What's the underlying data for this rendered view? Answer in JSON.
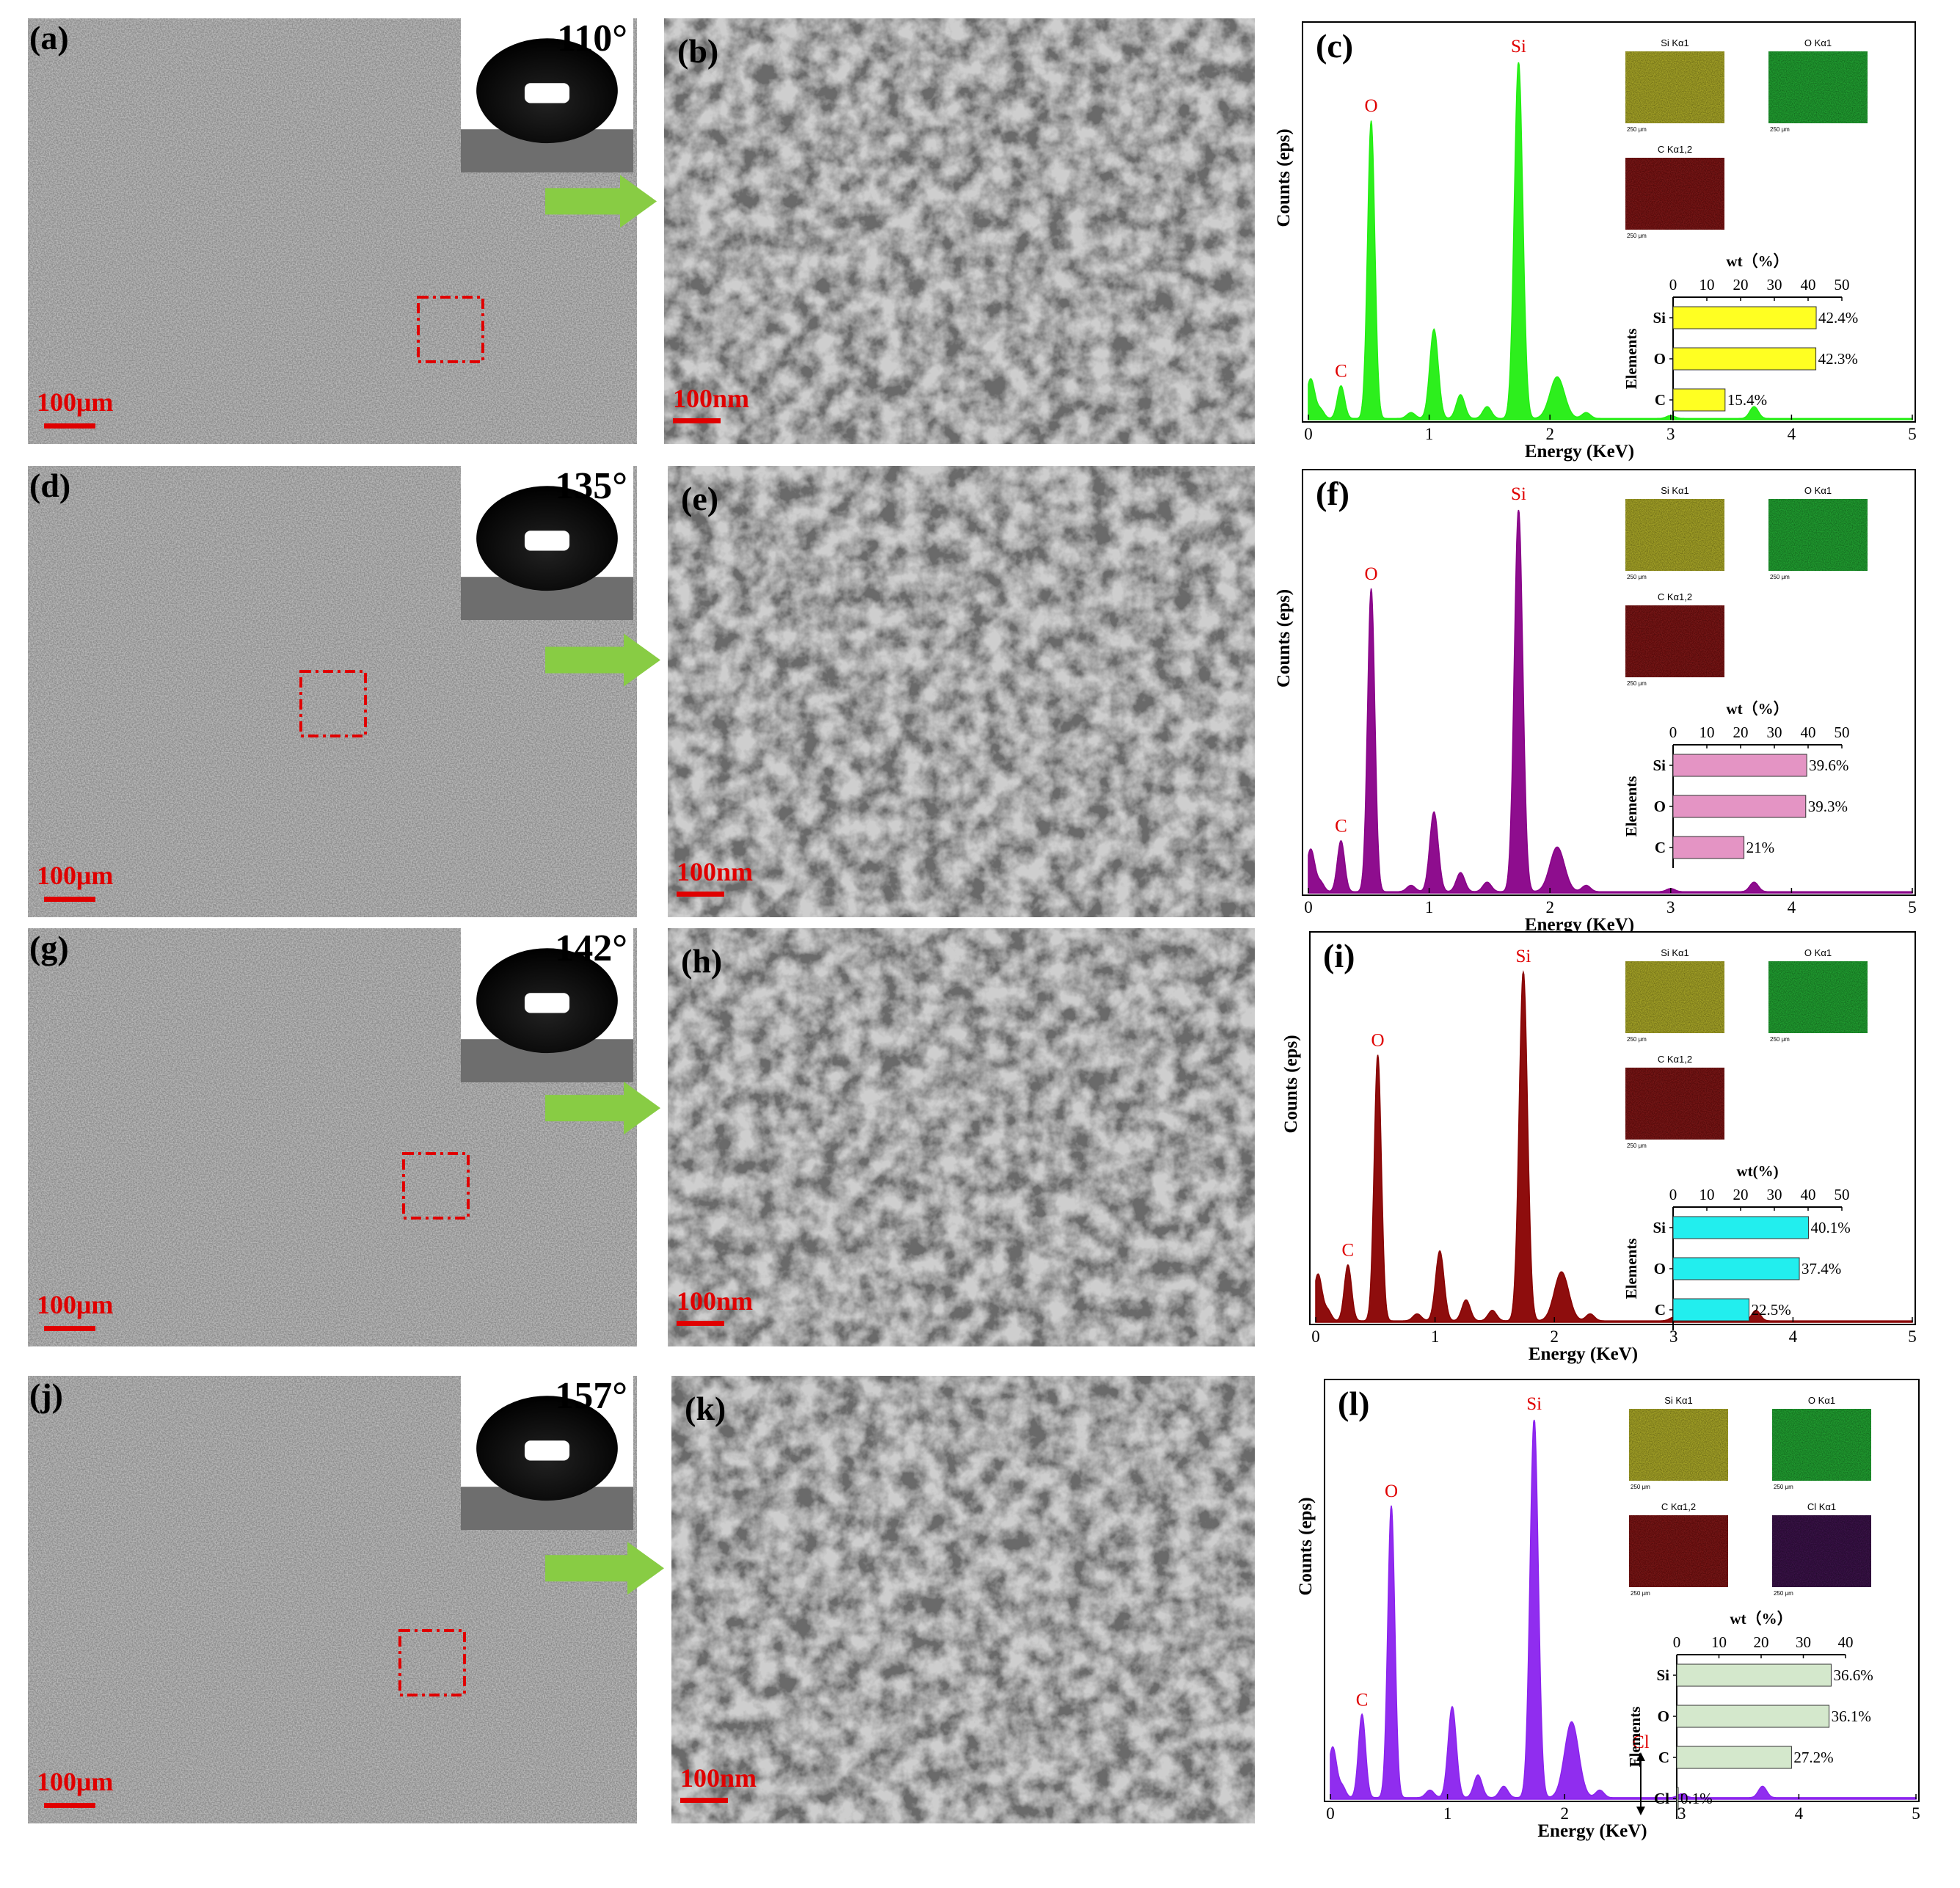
{
  "figure": {
    "rows": [
      {
        "sem_low_label": "(a)",
        "contact_angle": "110°",
        "scale_low": "100μm",
        "sem_high_label": "(b)",
        "scale_high": "100nm",
        "eds_label": "(c)",
        "color": "#22ee11",
        "chart_data": {
          "type": "area",
          "xlabel": "Energy (KeV)",
          "ylabel": "Counts (eps)",
          "xlim": [
            0,
            5
          ],
          "xticks": [
            "0",
            "1",
            "2",
            "3",
            "4",
            "5"
          ],
          "peaks": [
            {
              "label": "C",
              "energy": 0.27
            },
            {
              "label": "O",
              "energy": 0.52
            },
            {
              "label": "Si",
              "energy": 1.74
            }
          ],
          "spectrum": [
            [
              0.0,
              0.06
            ],
            [
              0.03,
              0.09
            ],
            [
              0.1,
              0.03
            ],
            [
              0.27,
              0.11
            ],
            [
              0.52,
              1.0
            ],
            [
              0.85,
              0.02
            ],
            [
              1.04,
              0.3
            ],
            [
              1.26,
              0.08
            ],
            [
              1.48,
              0.04
            ],
            [
              1.74,
              1.2
            ],
            [
              2.06,
              0.14
            ],
            [
              2.3,
              0.02
            ],
            [
              3.0,
              0.01
            ],
            [
              3.69,
              0.04
            ],
            [
              5.0,
              0.0
            ]
          ],
          "inset_bar": {
            "title": "wt（%）",
            "ylabel": "Elements",
            "xlim": [
              0,
              50
            ],
            "xticks": [
              "0",
              "10",
              "20",
              "30",
              "40",
              "50"
            ],
            "categories": [
              "Si",
              "O",
              "C"
            ],
            "values": [
              42.4,
              42.3,
              15.4
            ],
            "value_labels": [
              "42.4%",
              "42.3%",
              "15.4%"
            ],
            "bar_color": "#ffff22"
          },
          "maps": [
            {
              "label": "Si Kα1",
              "scale": "250 μm",
              "color": "#a7a528"
            },
            {
              "label": "O Kα1",
              "scale": "250 μm",
              "color": "#22a032"
            },
            {
              "label": "C Kα1,2",
              "scale": "250 μm",
              "color": "#7a1616"
            }
          ]
        }
      },
      {
        "sem_low_label": "(d)",
        "contact_angle": "135°",
        "scale_low": "100μm",
        "sem_high_label": "(e)",
        "scale_high": "100nm",
        "eds_label": "(f)",
        "color": "#880088",
        "chart_data": {
          "type": "area",
          "xlabel": "Energy (KeV)",
          "ylabel": "Counts (eps)",
          "xlim": [
            0,
            5
          ],
          "xticks": [
            "0",
            "1",
            "2",
            "3",
            "4",
            "5"
          ],
          "peaks": [
            {
              "label": "C",
              "energy": 0.27
            },
            {
              "label": "O",
              "energy": 0.52
            },
            {
              "label": "Si",
              "energy": 1.74
            }
          ],
          "spectrum": [
            [
              0.0,
              0.06
            ],
            [
              0.03,
              0.09
            ],
            [
              0.1,
              0.03
            ],
            [
              0.27,
              0.16
            ],
            [
              0.52,
              0.95
            ],
            [
              0.85,
              0.02
            ],
            [
              1.04,
              0.25
            ],
            [
              1.26,
              0.06
            ],
            [
              1.48,
              0.03
            ],
            [
              1.74,
              1.2
            ],
            [
              2.06,
              0.14
            ],
            [
              2.3,
              0.02
            ],
            [
              3.0,
              0.01
            ],
            [
              3.69,
              0.03
            ],
            [
              5.0,
              0.0
            ]
          ],
          "inset_bar": {
            "title": "wt（%）",
            "ylabel": "Elements",
            "xlim": [
              0,
              50
            ],
            "xticks": [
              "0",
              "10",
              "20",
              "30",
              "40",
              "50"
            ],
            "categories": [
              "Si",
              "O",
              "C"
            ],
            "values": [
              39.6,
              39.3,
              21
            ],
            "value_labels": [
              "39.6%",
              "39.3%",
              "21%"
            ],
            "bar_color": "#e494c4"
          },
          "maps": [
            {
              "label": "Si Kα1",
              "scale": "250 μm",
              "color": "#a7a528"
            },
            {
              "label": "O Kα1",
              "scale": "250 μm",
              "color": "#22a032"
            },
            {
              "label": "C Kα1,2",
              "scale": "250 μm",
              "color": "#7a1616"
            }
          ]
        }
      },
      {
        "sem_low_label": "(g)",
        "contact_angle": "142°",
        "scale_low": "100μm",
        "sem_high_label": "(h)",
        "scale_high": "100nm",
        "eds_label": "(i)",
        "color": "#880000",
        "chart_data": {
          "type": "area",
          "xlabel": "Energy (KeV)",
          "ylabel": "Counts (eps)",
          "xlim": [
            0,
            5
          ],
          "xticks": [
            "0",
            "1",
            "2",
            "3",
            "4",
            "5"
          ],
          "peaks": [
            {
              "label": "C",
              "energy": 0.27
            },
            {
              "label": "O",
              "energy": 0.52
            },
            {
              "label": "Si",
              "energy": 1.74
            }
          ],
          "spectrum": [
            [
              0.0,
              0.06
            ],
            [
              0.03,
              0.09
            ],
            [
              0.1,
              0.03
            ],
            [
              0.27,
              0.16
            ],
            [
              0.52,
              0.76
            ],
            [
              0.85,
              0.02
            ],
            [
              1.04,
              0.2
            ],
            [
              1.26,
              0.06
            ],
            [
              1.48,
              0.03
            ],
            [
              1.74,
              1.0
            ],
            [
              2.06,
              0.14
            ],
            [
              2.3,
              0.02
            ],
            [
              3.0,
              0.01
            ],
            [
              3.69,
              0.03
            ],
            [
              5.0,
              0.0
            ]
          ],
          "inset_bar": {
            "title": "wt(%)",
            "ylabel": "Elements",
            "xlim": [
              0,
              50
            ],
            "xticks": [
              "0",
              "10",
              "20",
              "30",
              "40",
              "50"
            ],
            "categories": [
              "Si",
              "O",
              "C"
            ],
            "values": [
              40.1,
              37.4,
              22.5
            ],
            "value_labels": [
              "40.1%",
              "37.4%",
              "22.5%"
            ],
            "bar_color": "#22eeee"
          },
          "maps": [
            {
              "label": "Si Kα1",
              "scale": "250 μm",
              "color": "#a7a528"
            },
            {
              "label": "O Kα1",
              "scale": "250 μm",
              "color": "#22a032"
            },
            {
              "label": "C Kα1,2",
              "scale": "250 μm",
              "color": "#7a1616"
            }
          ]
        }
      },
      {
        "sem_low_label": "(j)",
        "contact_angle": "157°",
        "scale_low": "100μm",
        "sem_high_label": "(k)",
        "scale_high": "100nm",
        "eds_label": "(l)",
        "color": "#8a22ee",
        "chart_data": {
          "type": "area",
          "xlabel": "Energy (KeV)",
          "ylabel": "Counts (eps)",
          "xlim": [
            0,
            5
          ],
          "xticks": [
            "0",
            "1",
            "2",
            "3",
            "4",
            "5"
          ],
          "peaks": [
            {
              "label": "C",
              "energy": 0.27
            },
            {
              "label": "O",
              "energy": 0.52
            },
            {
              "label": "Si",
              "energy": 1.74
            },
            {
              "label": "Cl",
              "energy": 2.65
            }
          ],
          "spectrum": [
            [
              0.0,
              0.06
            ],
            [
              0.03,
              0.09
            ],
            [
              0.1,
              0.03
            ],
            [
              0.27,
              0.22
            ],
            [
              0.52,
              0.77
            ],
            [
              0.85,
              0.02
            ],
            [
              1.04,
              0.24
            ],
            [
              1.26,
              0.06
            ],
            [
              1.48,
              0.03
            ],
            [
              1.74,
              1.0
            ],
            [
              2.06,
              0.2
            ],
            [
              2.3,
              0.02
            ],
            [
              3.0,
              0.01
            ],
            [
              3.69,
              0.03
            ],
            [
              5.0,
              0.0
            ]
          ],
          "inset_bar": {
            "title": "wt（%）",
            "ylabel": "Elements",
            "xlim": [
              0,
              40
            ],
            "xticks": [
              "0",
              "10",
              "20",
              "30",
              "40"
            ],
            "categories": [
              "Si",
              "O",
              "C",
              "Cl"
            ],
            "values": [
              36.6,
              36.1,
              27.2,
              0.1
            ],
            "value_labels": [
              "36.6%",
              "36.1%",
              "27.2%",
              "0.1%"
            ],
            "bar_color": "#d4e8cc"
          },
          "maps": [
            {
              "label": "Si Kα1",
              "scale": "250 μm",
              "color": "#a7a528"
            },
            {
              "label": "O Kα1",
              "scale": "250 μm",
              "color": "#22a032"
            },
            {
              "label": "C Kα1,2",
              "scale": "250 μm",
              "color": "#7a1616"
            },
            {
              "label": "Cl Kα1",
              "scale": "250 μm",
              "color": "#3a1448"
            }
          ]
        }
      }
    ]
  }
}
